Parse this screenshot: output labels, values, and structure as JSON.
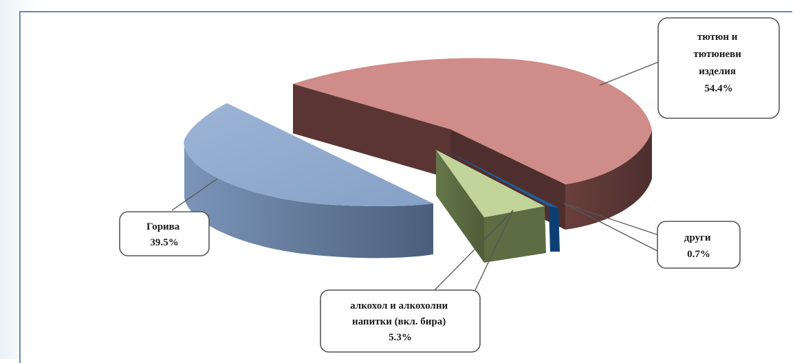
{
  "chart_data": {
    "type": "pie",
    "style": "3d-exploded",
    "slices": [
      {
        "label_lines": [
          "тютюн и",
          "тютюневи",
          "изделия",
          "54.4%"
        ],
        "value": 54.4,
        "color": "#cf8c88"
      },
      {
        "label_lines": [
          "Горива",
          "39.5%"
        ],
        "value": 39.5,
        "color": "#8fa8cd"
      },
      {
        "label_lines": [
          "алкохол и алкохолни",
          "напитки (вкл. бира)",
          "5.3%"
        ],
        "value": 5.3,
        "color": "#c1d49a"
      },
      {
        "label_lines": [
          "други",
          "0.7%"
        ],
        "value": 0.7,
        "color": "#1f5f9c"
      }
    ]
  }
}
